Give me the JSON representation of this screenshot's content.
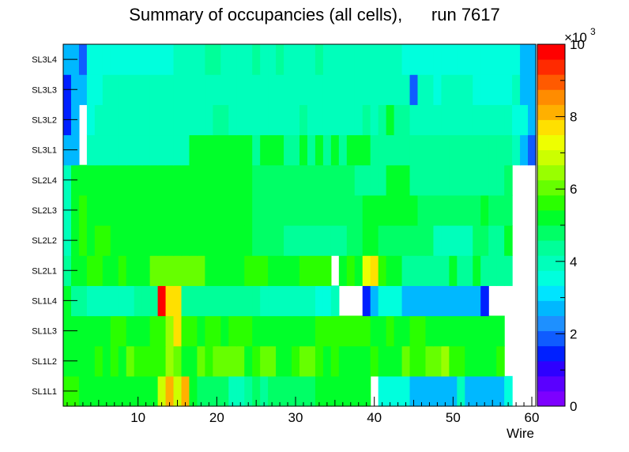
{
  "title": "Summary of occupancies (all cells),      run 7617",
  "chart_data": {
    "type": "heatmap",
    "title": "Summary of occupancies (all cells),      run 7617",
    "xlabel": "Wire",
    "ylabel": "",
    "xlim": [
      0.5,
      60.5
    ],
    "x_ticks": [
      "10",
      "20",
      "30",
      "40",
      "50",
      "60"
    ],
    "y_categories": [
      "SL1L1",
      "SL1L2",
      "SL1L3",
      "SL1L4",
      "SL2L1",
      "SL2L2",
      "SL2L3",
      "SL2L4",
      "SL3L1",
      "SL3L2",
      "SL3L3",
      "SL3L4"
    ],
    "z_range": [
      0,
      10000
    ],
    "z_exponent_label": "×10",
    "z_exponent": "3",
    "z_ticks": [
      "0",
      "2",
      "4",
      "6",
      "8",
      "10"
    ],
    "grid": false,
    "colorbar": "right",
    "layers": [
      {
        "name": "SL1L1",
        "values": [
          5600,
          5600,
          5000,
          5000,
          5400,
          5400,
          5000,
          5400,
          5400,
          5400,
          5400,
          5000,
          7000,
          8000,
          7000,
          8000,
          5000,
          4600,
          4600,
          4600,
          4600,
          4000,
          4000,
          4200,
          4600,
          4200,
          4600,
          4600,
          4600,
          4600,
          4600,
          4600,
          5400,
          5400,
          5400,
          5400,
          5400,
          5400,
          5400,
          null,
          3500,
          3500,
          3500,
          3500,
          2600,
          2600,
          2600,
          2600,
          2600,
          2600,
          4000,
          2600,
          2600,
          2600,
          2600,
          2600,
          3500,
          null,
          null,
          null
        ]
      },
      {
        "name": "SL1L2",
        "values": [
          5400,
          5400,
          5400,
          5400,
          5600,
          5400,
          5600,
          5400,
          6200,
          5600,
          5600,
          5600,
          5600,
          6400,
          6200,
          5400,
          5400,
          6000,
          5600,
          6200,
          6200,
          6200,
          6200,
          5400,
          5600,
          6000,
          6000,
          5400,
          5400,
          5600,
          6000,
          6000,
          5600,
          5400,
          5600,
          5400,
          5400,
          5400,
          5400,
          5600,
          5400,
          5400,
          5400,
          6000,
          5600,
          5600,
          6000,
          6000,
          6400,
          5600,
          5600,
          5400,
          5400,
          5400,
          5400,
          5600,
          null,
          null,
          null,
          null
        ]
      },
      {
        "name": "SL1L3",
        "values": [
          5400,
          5400,
          5000,
          5000,
          5400,
          5400,
          5600,
          5600,
          5400,
          5400,
          5400,
          5600,
          5600,
          6500,
          7600,
          5600,
          5600,
          5400,
          5600,
          5600,
          5400,
          5600,
          5600,
          5600,
          5400,
          5400,
          5400,
          5400,
          5400,
          5400,
          5400,
          5400,
          5600,
          5600,
          5600,
          5600,
          5600,
          5600,
          5600,
          5400,
          5400,
          5600,
          5400,
          5400,
          5600,
          5600,
          5400,
          5400,
          5400,
          5400,
          5400,
          5400,
          5400,
          5400,
          5400,
          5400,
          null,
          null,
          null,
          null
        ]
      },
      {
        "name": "SL1L4",
        "values": [
          5000,
          4400,
          4400,
          3800,
          3800,
          3800,
          3800,
          4000,
          4000,
          4400,
          4400,
          4400,
          9800,
          7800,
          7800,
          4500,
          4500,
          4500,
          4500,
          4500,
          4500,
          4500,
          4500,
          4500,
          4500,
          4000,
          4000,
          4000,
          4000,
          4000,
          4000,
          4000,
          3500,
          3500,
          4000,
          null,
          null,
          null,
          1500,
          2600,
          3500,
          3500,
          3500,
          2600,
          2600,
          2600,
          2600,
          2600,
          2600,
          2600,
          2600,
          2600,
          2600,
          1500,
          null,
          null,
          null,
          null,
          null,
          null
        ]
      },
      {
        "name": "SL2L1",
        "values": [
          4400,
          5400,
          5400,
          5600,
          5600,
          5400,
          5400,
          5600,
          5400,
          5400,
          5400,
          6000,
          6000,
          6000,
          6000,
          6000,
          6000,
          6000,
          5400,
          5400,
          5400,
          5400,
          5400,
          5600,
          5600,
          5600,
          5400,
          5400,
          5400,
          5400,
          5600,
          5600,
          5600,
          5600,
          null,
          5400,
          5600,
          5400,
          7300,
          7700,
          5600,
          5400,
          5400,
          4500,
          4500,
          4500,
          4500,
          4500,
          4500,
          5000,
          4500,
          4500,
          5000,
          4500,
          4500,
          4500,
          4500,
          null,
          null,
          null
        ]
      },
      {
        "name": "SL2L2",
        "values": [
          3800,
          5000,
          5600,
          5200,
          5600,
          5600,
          5200,
          5400,
          5400,
          5400,
          5400,
          5400,
          5400,
          5400,
          5400,
          5400,
          5400,
          5400,
          5400,
          5000,
          5000,
          5000,
          5000,
          5000,
          4800,
          4800,
          4800,
          4800,
          4400,
          4400,
          4400,
          4400,
          4400,
          4400,
          4400,
          4400,
          4600,
          4600,
          5400,
          5400,
          4600,
          4600,
          4600,
          4600,
          4600,
          4600,
          4600,
          4000,
          4000,
          4000,
          4000,
          4000,
          4800,
          4800,
          4400,
          4400,
          5000,
          null,
          null,
          null
        ]
      },
      {
        "name": "SL2L3",
        "values": [
          4000,
          5400,
          5600,
          5400,
          5400,
          5400,
          5400,
          5000,
          5000,
          5000,
          5400,
          5400,
          5400,
          5400,
          5400,
          5400,
          5400,
          5400,
          5400,
          5400,
          5400,
          5000,
          5000,
          5000,
          4800,
          4800,
          4800,
          4800,
          4800,
          4800,
          4800,
          4800,
          4800,
          4800,
          4800,
          4800,
          4800,
          4800,
          5000,
          5000,
          5000,
          5000,
          5000,
          5000,
          5000,
          4800,
          4800,
          4800,
          4800,
          4800,
          4800,
          4800,
          4800,
          5000,
          4800,
          4800,
          4800,
          null,
          null,
          null
        ]
      },
      {
        "name": "SL2L4",
        "values": [
          4000,
          5400,
          5400,
          5400,
          5400,
          5400,
          5000,
          5400,
          5400,
          5400,
          5400,
          5400,
          5400,
          5400,
          5400,
          5400,
          5400,
          5400,
          5400,
          5400,
          5000,
          5000,
          5000,
          5000,
          4800,
          4800,
          4800,
          4800,
          4800,
          4800,
          4800,
          4800,
          4800,
          4800,
          4800,
          4800,
          4800,
          4400,
          4400,
          4400,
          4400,
          5000,
          5000,
          5000,
          4400,
          4400,
          4400,
          4400,
          4400,
          4400,
          4400,
          4400,
          4400,
          4400,
          4400,
          4400,
          4800,
          null,
          null,
          null
        ]
      },
      {
        "name": "SL3L1",
        "values": [
          2600,
          2600,
          null,
          3800,
          3800,
          3800,
          3800,
          3800,
          3800,
          3800,
          3800,
          3800,
          3800,
          3800,
          3800,
          3800,
          5000,
          5000,
          5000,
          5000,
          5000,
          5000,
          5000,
          5000,
          4500,
          5000,
          5000,
          5000,
          4500,
          4500,
          5000,
          4500,
          5000,
          4500,
          5000,
          4500,
          5000,
          5000,
          5000,
          4500,
          4500,
          4500,
          4500,
          4500,
          4500,
          4500,
          4500,
          4500,
          4500,
          4500,
          4500,
          4500,
          4500,
          4500,
          4500,
          4500,
          4500,
          4000,
          2600,
          1800
        ]
      },
      {
        "name": "SL3L2",
        "values": [
          1500,
          2600,
          null,
          3400,
          4000,
          4000,
          4000,
          4000,
          4000,
          4000,
          4000,
          4000,
          4000,
          4000,
          4000,
          4000,
          4000,
          4000,
          4000,
          4500,
          4500,
          4000,
          4000,
          4000,
          4000,
          4000,
          4000,
          4000,
          4000,
          4000,
          4500,
          4000,
          4000,
          4000,
          4000,
          4000,
          4000,
          4000,
          4500,
          4000,
          4500,
          5000,
          4500,
          4500,
          4000,
          4000,
          4000,
          4000,
          4000,
          4000,
          4000,
          4000,
          4000,
          4000,
          4000,
          4000,
          4000,
          3500,
          3500,
          2600
        ]
      },
      {
        "name": "SL3L3",
        "values": [
          1500,
          2600,
          2600,
          3400,
          3400,
          4000,
          4000,
          4000,
          4000,
          4000,
          4000,
          4000,
          4000,
          4000,
          4000,
          4000,
          4000,
          4000,
          4000,
          4000,
          4000,
          4000,
          4000,
          4000,
          4000,
          4000,
          4000,
          4000,
          4000,
          4000,
          4000,
          4000,
          4000,
          4000,
          4000,
          4000,
          4000,
          4000,
          4000,
          4000,
          4000,
          4000,
          4000,
          4000,
          1800,
          4000,
          4000,
          3500,
          4000,
          4000,
          4000,
          4000,
          3500,
          3500,
          3500,
          3500,
          3500,
          4000,
          2600,
          2600
        ]
      },
      {
        "name": "SL3L4",
        "values": [
          2600,
          2600,
          1800,
          3500,
          3500,
          3500,
          3500,
          3500,
          3500,
          3500,
          3500,
          3500,
          3500,
          3500,
          4000,
          4000,
          4000,
          4000,
          4400,
          4400,
          4000,
          4000,
          4000,
          4000,
          4400,
          4000,
          4000,
          4400,
          4000,
          4000,
          4000,
          4000,
          4400,
          4000,
          4000,
          4000,
          4000,
          4000,
          4000,
          4000,
          4000,
          4000,
          4000,
          3500,
          3500,
          3500,
          3500,
          3500,
          3500,
          3500,
          3500,
          3500,
          3500,
          3500,
          3500,
          3500,
          3500,
          3500,
          2600,
          2600
        ]
      }
    ]
  }
}
